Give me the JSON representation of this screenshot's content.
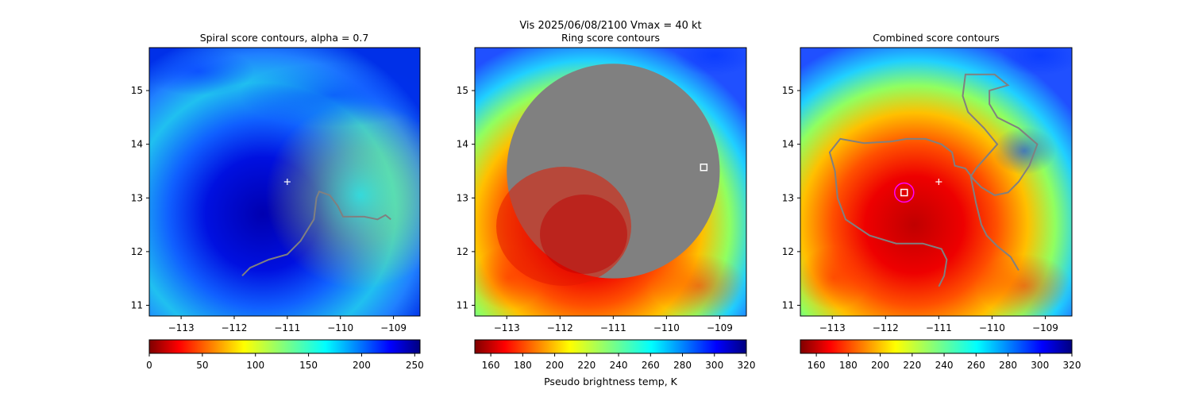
{
  "figure": {
    "suptitle": "Vis  2025/06/08/2100    Vmax = 40 kt",
    "colorbar_label": "Pseudo brightness temp, K"
  },
  "colors": {
    "contour": "#808080",
    "center_marker": "#ffffff",
    "fit_circle": "#ff00ff"
  },
  "chart_data": [
    {
      "type": "heatmap",
      "title": "Spiral score contours, alpha =  0.7",
      "colormap": "jet",
      "xlim": [
        -113.6,
        -108.5
      ],
      "ylim": [
        10.8,
        15.8
      ],
      "xticks": [
        -113,
        -112,
        -111,
        -110,
        -109
      ],
      "yticks": [
        11,
        12,
        13,
        14,
        15
      ],
      "xtick_labels": [
        "−113",
        "−112",
        "−111",
        "−110",
        "−109"
      ],
      "ytick_labels": [
        "11",
        "12",
        "13",
        "14",
        "15"
      ],
      "storm_center": [
        -111.0,
        13.3
      ],
      "spiral_contour": [
        [
          -111.85,
          11.55
        ],
        [
          -111.7,
          11.7
        ],
        [
          -111.35,
          11.85
        ],
        [
          -111.0,
          11.95
        ],
        [
          -110.75,
          12.2
        ],
        [
          -110.5,
          12.6
        ],
        [
          -110.45,
          13.0
        ],
        [
          -110.4,
          13.12
        ],
        [
          -110.2,
          13.05
        ],
        [
          -110.05,
          12.85
        ],
        [
          -109.95,
          12.65
        ],
        [
          -109.8,
          12.65
        ],
        [
          -109.55,
          12.65
        ],
        [
          -109.3,
          12.6
        ],
        [
          -109.15,
          12.68
        ],
        [
          -109.05,
          12.6
        ]
      ],
      "colorbar": {
        "min": 0,
        "max": 255,
        "ticks": [
          0,
          50,
          100,
          150,
          200,
          250
        ],
        "tick_labels": [
          "0",
          "50",
          "100",
          "150",
          "200",
          "250"
        ],
        "colormap": "jet_r"
      }
    },
    {
      "type": "heatmap",
      "title": "Ring score contours",
      "colormap": "jet_r",
      "xlim": [
        -113.6,
        -108.5
      ],
      "ylim": [
        10.8,
        15.8
      ],
      "xticks": [
        -113,
        -112,
        -111,
        -110,
        -109
      ],
      "yticks": [
        11,
        12,
        13,
        14,
        15
      ],
      "xtick_labels": [
        "−113",
        "−112",
        "−111",
        "−110",
        "−109"
      ],
      "ytick_labels": [
        "11",
        "12",
        "13",
        "14",
        "15"
      ],
      "ring_mask": {
        "center": [
          -111.0,
          13.5
        ],
        "radius_deg": 2.0
      },
      "best_ring_center": [
        -109.3,
        13.57
      ],
      "colorbar": {
        "min": 150,
        "max": 320,
        "ticks": [
          160,
          180,
          200,
          220,
          240,
          260,
          280,
          300,
          320
        ],
        "tick_labels": [
          "160",
          "180",
          "200",
          "220",
          "240",
          "260",
          "280",
          "300",
          "320"
        ],
        "colormap": "jet_r"
      }
    },
    {
      "type": "heatmap",
      "title": "Combined score contours",
      "colormap": "jet_r",
      "xlim": [
        -113.6,
        -108.5
      ],
      "ylim": [
        10.8,
        15.8
      ],
      "xticks": [
        -113,
        -112,
        -111,
        -110,
        -109
      ],
      "yticks": [
        11,
        12,
        13,
        14,
        15
      ],
      "xtick_labels": [
        "−113",
        "−112",
        "−111",
        "−110",
        "−109"
      ],
      "ytick_labels": [
        "11",
        "12",
        "13",
        "14",
        "15"
      ],
      "storm_center": [
        -111.0,
        13.3
      ],
      "combined_center": [
        -111.65,
        13.1
      ],
      "combined_contour": [
        [
          -111.0,
          11.35
        ],
        [
          -110.9,
          11.55
        ],
        [
          -110.85,
          11.85
        ],
        [
          -110.95,
          12.05
        ],
        [
          -111.3,
          12.15
        ],
        [
          -111.8,
          12.15
        ],
        [
          -112.3,
          12.3
        ],
        [
          -112.75,
          12.6
        ],
        [
          -112.9,
          13.0
        ],
        [
          -112.95,
          13.5
        ],
        [
          -113.05,
          13.85
        ],
        [
          -112.85,
          14.1
        ],
        [
          -112.4,
          14.02
        ],
        [
          -111.9,
          14.05
        ],
        [
          -111.6,
          14.1
        ],
        [
          -111.25,
          14.1
        ],
        [
          -110.95,
          14.0
        ],
        [
          -110.75,
          13.85
        ],
        [
          -110.7,
          13.6
        ],
        [
          -110.5,
          13.55
        ],
        [
          -110.35,
          13.35
        ],
        [
          -110.2,
          13.2
        ],
        [
          -109.95,
          13.05
        ],
        [
          -109.7,
          13.1
        ],
        [
          -109.5,
          13.3
        ],
        [
          -109.3,
          13.6
        ],
        [
          -109.15,
          14.0
        ],
        [
          -109.5,
          14.3
        ],
        [
          -109.9,
          14.5
        ],
        [
          -110.05,
          14.75
        ],
        [
          -110.05,
          15.0
        ],
        [
          -109.7,
          15.1
        ],
        [
          -109.95,
          15.3
        ],
        [
          -110.5,
          15.3
        ],
        [
          -110.55,
          14.9
        ],
        [
          -110.45,
          14.6
        ],
        [
          -110.15,
          14.3
        ],
        [
          -109.9,
          14.0
        ],
        [
          -110.3,
          13.55
        ],
        [
          -110.4,
          13.4
        ],
        [
          -110.3,
          12.9
        ],
        [
          -110.2,
          12.5
        ],
        [
          -110.1,
          12.3
        ],
        [
          -109.9,
          12.1
        ],
        [
          -109.65,
          11.9
        ],
        [
          -109.5,
          11.65
        ]
      ],
      "colorbar": {
        "min": 150,
        "max": 320,
        "ticks": [
          160,
          180,
          200,
          220,
          240,
          260,
          280,
          300,
          320
        ],
        "tick_labels": [
          "160",
          "180",
          "200",
          "220",
          "240",
          "260",
          "280",
          "300",
          "320"
        ],
        "colormap": "jet_r"
      }
    }
  ]
}
